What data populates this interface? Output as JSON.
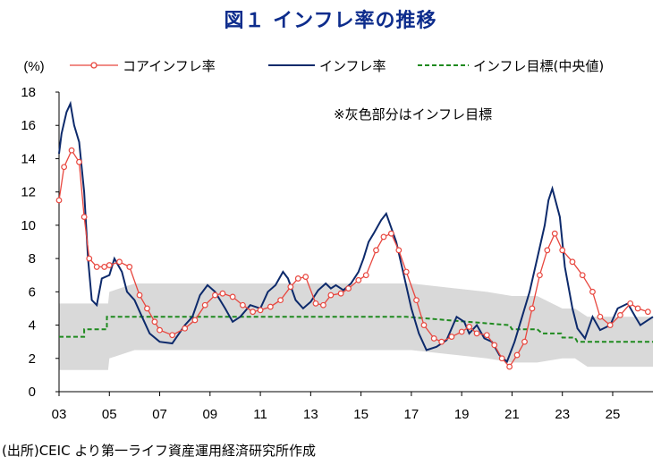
{
  "title": "図１ インフレ率の推移",
  "source_note": "(出所)CEIC より第一ライフ資産運用経済研究所作成",
  "colors": {
    "core": "#e8473f",
    "headline": "#0d2a6b",
    "target": "#1f8a1f",
    "band": "#d9d9d9",
    "title": "#0d2c8c"
  },
  "chart_data": {
    "type": "line",
    "ylabel": "(%)",
    "ylim": [
      0,
      18
    ],
    "y_ticks": [
      0,
      2,
      4,
      6,
      8,
      10,
      12,
      14,
      16,
      18
    ],
    "xlim": [
      2003,
      2026.6
    ],
    "x_ticks": [
      2003,
      2005,
      2007,
      2009,
      2011,
      2013,
      2015,
      2017,
      2019,
      2021,
      2023,
      2025
    ],
    "x_tick_labels": [
      "03",
      "05",
      "07",
      "09",
      "11",
      "13",
      "15",
      "17",
      "19",
      "21",
      "23",
      "25"
    ],
    "grid": false,
    "legend_position": "top",
    "annotation": "※灰色部分はインフレ目標",
    "series": [
      {
        "name": "コアインフレ率",
        "style": "line-with-open-circles",
        "x": [
          2003.0,
          2003.2,
          2003.5,
          2003.8,
          2004.0,
          2004.2,
          2004.5,
          2004.8,
          2005.0,
          2005.4,
          2005.8,
          2006.2,
          2006.5,
          2006.8,
          2007.0,
          2007.5,
          2008.0,
          2008.4,
          2008.8,
          2009.2,
          2009.5,
          2009.9,
          2010.3,
          2010.7,
          2011.0,
          2011.4,
          2011.8,
          2012.2,
          2012.5,
          2012.8,
          2013.2,
          2013.5,
          2013.8,
          2014.2,
          2014.5,
          2014.9,
          2015.2,
          2015.6,
          2015.9,
          2016.2,
          2016.5,
          2016.8,
          2017.2,
          2017.5,
          2017.9,
          2018.2,
          2018.6,
          2019.0,
          2019.3,
          2019.6,
          2020.0,
          2020.3,
          2020.6,
          2020.9,
          2021.2,
          2021.5,
          2021.8,
          2022.1,
          2022.4,
          2022.7,
          2023.0,
          2023.4,
          2023.8,
          2024.2,
          2024.5,
          2024.9,
          2025.3,
          2025.7,
          2026.0,
          2026.4
        ],
        "y": [
          11.5,
          13.5,
          14.5,
          13.8,
          10.5,
          8.0,
          7.5,
          7.5,
          7.6,
          7.8,
          7.5,
          5.8,
          5.0,
          4.2,
          3.7,
          3.4,
          3.8,
          4.3,
          5.2,
          5.8,
          5.9,
          5.7,
          5.2,
          4.8,
          4.9,
          5.1,
          5.5,
          6.3,
          6.8,
          6.9,
          5.3,
          5.2,
          5.8,
          5.9,
          6.2,
          6.7,
          7.0,
          8.5,
          9.3,
          9.5,
          8.5,
          7.2,
          5.5,
          4.0,
          3.2,
          3.0,
          3.3,
          3.6,
          3.9,
          3.5,
          3.4,
          2.8,
          2.0,
          1.5,
          2.2,
          3.0,
          5.0,
          7.0,
          8.5,
          9.5,
          8.5,
          7.8,
          7.0,
          6.0,
          4.5,
          4.0,
          4.6,
          5.3,
          5.0,
          4.8
        ]
      },
      {
        "name": "インフレ率",
        "style": "solid-line",
        "x": [
          2003.0,
          2003.1,
          2003.3,
          2003.45,
          2003.6,
          2003.8,
          2004.0,
          2004.15,
          2004.3,
          2004.5,
          2004.7,
          2005.0,
          2005.2,
          2005.5,
          2005.7,
          2006.0,
          2006.3,
          2006.6,
          2007.0,
          2007.5,
          2008.0,
          2008.3,
          2008.6,
          2008.9,
          2009.2,
          2009.6,
          2009.9,
          2010.2,
          2010.6,
          2011.0,
          2011.3,
          2011.6,
          2011.9,
          2012.1,
          2012.4,
          2012.7,
          2013.0,
          2013.3,
          2013.6,
          2013.8,
          2014.0,
          2014.3,
          2014.6,
          2014.9,
          2015.1,
          2015.3,
          2015.5,
          2015.8,
          2016.0,
          2016.4,
          2016.7,
          2017.0,
          2017.3,
          2017.6,
          2018.0,
          2018.4,
          2018.8,
          2019.1,
          2019.3,
          2019.6,
          2019.9,
          2020.2,
          2020.5,
          2020.8,
          2021.1,
          2021.4,
          2021.7,
          2022.0,
          2022.3,
          2022.45,
          2022.6,
          2022.9,
          2023.1,
          2023.4,
          2023.6,
          2023.9,
          2024.2,
          2024.5,
          2024.9,
          2025.2,
          2025.6,
          2025.9,
          2026.1,
          2026.3,
          2026.6
        ],
        "y": [
          14.3,
          15.5,
          16.8,
          17.3,
          16.0,
          15.0,
          12.0,
          8.0,
          5.5,
          5.2,
          6.8,
          7.0,
          8.0,
          7.2,
          6.0,
          5.5,
          4.5,
          3.5,
          3.0,
          2.9,
          4.0,
          4.5,
          5.8,
          6.4,
          6.0,
          5.0,
          4.2,
          4.5,
          5.2,
          5.0,
          6.0,
          6.4,
          7.2,
          6.8,
          5.5,
          5.0,
          5.4,
          6.1,
          6.5,
          6.2,
          6.4,
          6.1,
          6.5,
          7.2,
          8.0,
          9.0,
          9.5,
          10.3,
          10.7,
          9.0,
          7.0,
          5.0,
          3.5,
          2.5,
          2.7,
          3.1,
          4.5,
          4.2,
          3.5,
          4.0,
          3.2,
          3.0,
          2.2,
          1.8,
          3.0,
          4.5,
          6.0,
          8.0,
          10.0,
          11.5,
          12.2,
          10.5,
          7.5,
          5.0,
          3.8,
          3.2,
          4.5,
          3.7,
          4.0,
          5.0,
          5.3,
          4.5,
          4.0,
          4.2,
          4.5
        ]
      },
      {
        "name": "インフレ目標(中央値)",
        "style": "dashed-line",
        "x": [
          2003.0,
          2004.0,
          2004.0,
          2004.9,
          2004.9,
          2008.0,
          2016.8,
          2020.9,
          2021.0,
          2022.0,
          2022.2,
          2022.95,
          2023.0,
          2023.5,
          2023.6,
          2026.6
        ],
        "y": [
          3.3,
          3.3,
          3.75,
          3.75,
          4.5,
          4.5,
          4.5,
          4.0,
          3.75,
          3.75,
          3.5,
          3.5,
          3.25,
          3.25,
          3.0,
          3.0
        ]
      },
      {
        "name": "band_lower",
        "x": [
          2003.0,
          2004.95,
          2005.0,
          2006.0,
          2007.0,
          2017.0,
          2020.0,
          2021.0,
          2022.0,
          2023.0,
          2023.5,
          2024.0,
          2026.6
        ],
        "y": [
          1.3,
          1.3,
          2.0,
          2.5,
          2.5,
          2.5,
          2.0,
          1.75,
          1.75,
          2.0,
          2.0,
          1.5,
          1.5
        ]
      },
      {
        "name": "band_upper",
        "x": [
          2003.0,
          2004.95,
          2005.0,
          2006.0,
          2007.0,
          2017.0,
          2020.0,
          2021.0,
          2022.0,
          2023.0,
          2023.5,
          2024.0,
          2026.6
        ],
        "y": [
          5.3,
          5.3,
          6.0,
          6.5,
          6.5,
          6.5,
          6.0,
          5.75,
          5.75,
          5.0,
          5.0,
          4.5,
          4.5
        ]
      }
    ]
  }
}
